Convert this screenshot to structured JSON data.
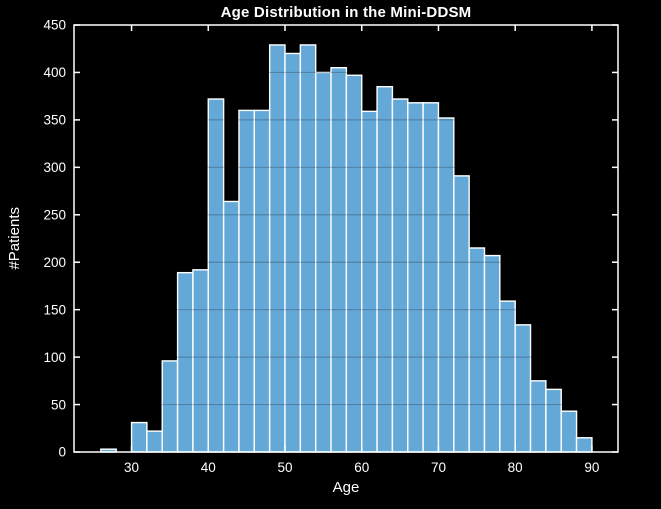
{
  "window": {
    "background": "#000000"
  },
  "chart_data": {
    "type": "bar",
    "subtype": "histogram",
    "title": "Age Distribution in the Mini-DDSM",
    "xlabel": "Age",
    "ylabel": "#Patients",
    "legend": "none",
    "grid": {
      "y_over_bars": true,
      "x": false
    },
    "bin_width_years": 2,
    "bin_start_ages": [
      26,
      28,
      30,
      32,
      34,
      36,
      38,
      40,
      42,
      44,
      46,
      48,
      50,
      52,
      54,
      56,
      58,
      60,
      62,
      64,
      66,
      68,
      70,
      72,
      74,
      76,
      78,
      80,
      82,
      84,
      86,
      88
    ],
    "values": [
      3,
      0,
      31,
      22,
      96,
      189,
      192,
      372,
      264,
      360,
      360,
      429,
      420,
      429,
      400,
      405,
      397,
      359,
      385,
      372,
      368,
      368,
      352,
      291,
      215,
      207,
      159,
      134,
      75,
      66,
      43,
      15
    ],
    "xlim": [
      22.5,
      93.4
    ],
    "ylim": [
      0,
      450
    ],
    "xticks": [
      30,
      40,
      50,
      60,
      70,
      80,
      90
    ],
    "yticks": [
      0,
      50,
      100,
      150,
      200,
      250,
      300,
      350,
      400,
      450
    ],
    "colors": {
      "background": "#000000",
      "bar_fill": "#64A8D8",
      "bar_edge": "#FFFFFF",
      "axis": "#FFFFFF",
      "text": "#FFFFFF",
      "grid_over_bars": "rgba(0,0,0,0.22)"
    }
  }
}
